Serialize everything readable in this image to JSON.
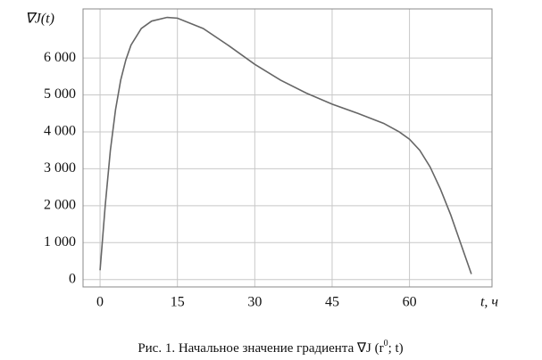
{
  "chart_data": {
    "type": "line",
    "ylabel": "∇J(t)",
    "xlabel": "t, ч",
    "caption": [
      "Рис. 1. Начальное значение градиента ∇J (r",
      "0",
      "; t)"
    ],
    "x": [
      0,
      1,
      2,
      3,
      4,
      5,
      6,
      8,
      10,
      13,
      15,
      20,
      25,
      30,
      35,
      40,
      45,
      50,
      55,
      58,
      60,
      62,
      64,
      66,
      68,
      70,
      72
    ],
    "series": [
      {
        "name": "∇J(t)",
        "color": "#666666",
        "values": [
          250,
          2000,
          3500,
          4600,
          5400,
          5950,
          6350,
          6800,
          7000,
          7100,
          7080,
          6800,
          6330,
          5830,
          5400,
          5050,
          4750,
          4500,
          4230,
          4000,
          3800,
          3500,
          3050,
          2450,
          1750,
          950,
          150
        ]
      }
    ],
    "xlim": [
      -3.3,
      76
    ],
    "xticks": [
      0,
      15,
      30,
      45,
      60
    ],
    "ylim": [
      -200,
      7330
    ],
    "yticks": [
      0,
      {
        "value": 1000,
        "label": "1 000"
      },
      {
        "value": 2000,
        "label": "2 000"
      },
      {
        "value": 3000,
        "label": "3 000"
      },
      {
        "value": 4000,
        "label": "4 000"
      },
      {
        "value": 5000,
        "label": "5 000"
      },
      {
        "value": 6000,
        "label": "6 000"
      }
    ],
    "grid": true
  }
}
